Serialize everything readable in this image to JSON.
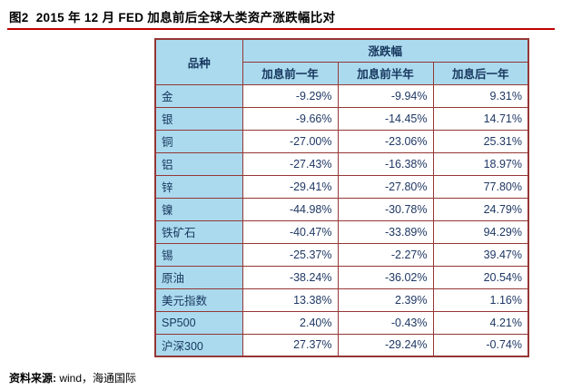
{
  "title": "图2  2015 年 12 月 FED 加息前后全球大类资产涨跌幅比对",
  "footer": {
    "source_label": "资料来源:",
    "source_value": " wind，海通国际"
  },
  "colors": {
    "accent_red": "#C00000",
    "table_border": "#953735",
    "header_bg": "#ABDAEE",
    "header_text": "#17375E"
  },
  "chart_data": {
    "type": "table",
    "title": "2015 年 12 月 FED 加息前后全球大类资产涨跌幅比对",
    "row_header": "品种",
    "col_group_header": "涨跌幅",
    "columns": [
      "加息前一年",
      "加息前半年",
      "加息后一年"
    ],
    "rows": [
      {
        "name": "金",
        "values": [
          "-9.29%",
          "-9.94%",
          "9.31%"
        ]
      },
      {
        "name": "银",
        "values": [
          "-9.66%",
          "-14.45%",
          "14.71%"
        ]
      },
      {
        "name": "铜",
        "values": [
          "-27.00%",
          "-23.06%",
          "25.31%"
        ]
      },
      {
        "name": "铝",
        "values": [
          "-27.43%",
          "-16.38%",
          "18.97%"
        ]
      },
      {
        "name": "锌",
        "values": [
          "-29.41%",
          "-27.80%",
          "77.80%"
        ]
      },
      {
        "name": "镍",
        "values": [
          "-44.98%",
          "-30.78%",
          "24.79%"
        ]
      },
      {
        "name": "铁矿石",
        "values": [
          "-40.47%",
          "-33.89%",
          "94.29%"
        ]
      },
      {
        "name": "锡",
        "values": [
          "-25.37%",
          "-2.27%",
          "39.47%"
        ]
      },
      {
        "name": "原油",
        "values": [
          "-38.24%",
          "-36.02%",
          "20.54%"
        ]
      },
      {
        "name": "美元指数",
        "values": [
          "13.38%",
          "2.39%",
          "1.16%"
        ]
      },
      {
        "name": "SP500",
        "values": [
          "2.40%",
          "-0.43%",
          "4.21%"
        ]
      },
      {
        "name": "沪深300",
        "values": [
          "27.37%",
          "-29.24%",
          "-0.74%"
        ]
      }
    ]
  }
}
